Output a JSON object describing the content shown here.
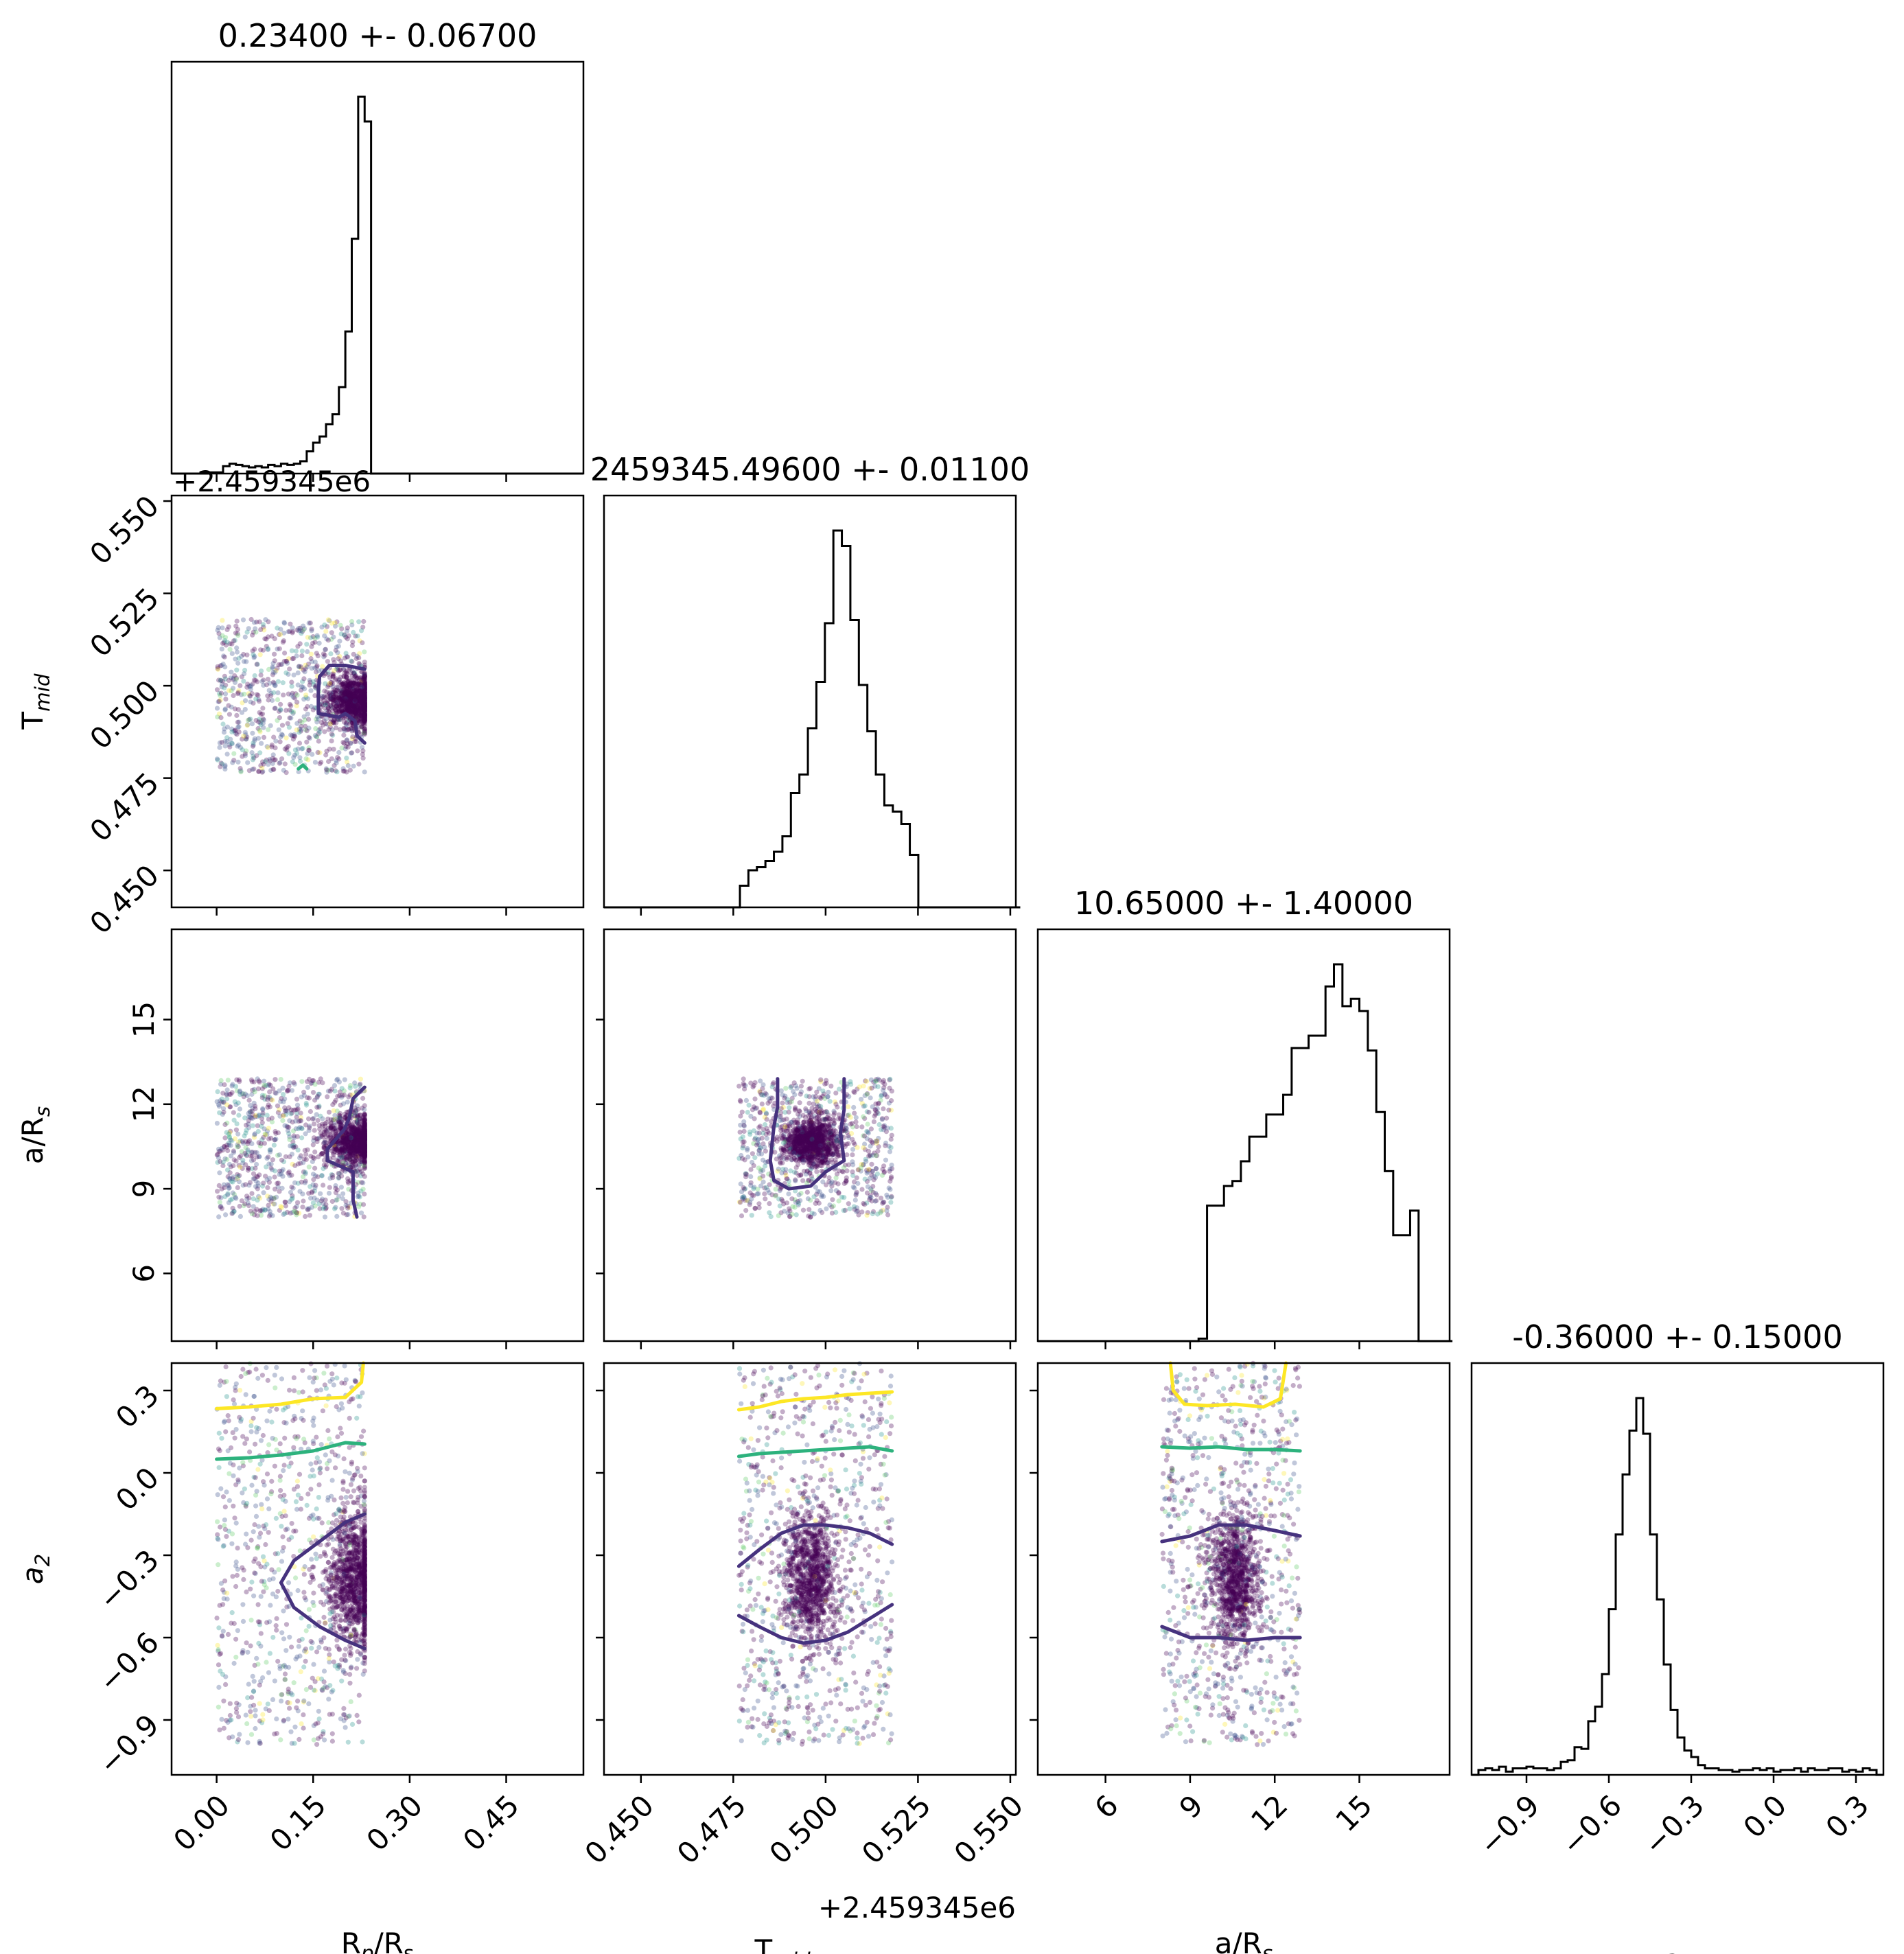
{
  "chart_data": {
    "type": "corner",
    "parameters": [
      {
        "key": "rp",
        "label": "R",
        "label_sub": "p",
        "label_tail": "/R",
        "label_sub2": "s",
        "title": "0.23400 +- 0.06700",
        "range": [
          -0.07,
          0.57
        ],
        "ticks": [
          0.0,
          0.15,
          0.3,
          0.45
        ],
        "tick_labels": [
          "0.00",
          "0.15",
          "0.30",
          "0.45"
        ],
        "offset": ""
      },
      {
        "key": "tmid",
        "label": "T",
        "label_sub": "mid",
        "label_tail": "",
        "label_sub2": "",
        "title": "2459345.49600 +- 0.01100",
        "range": [
          0.44,
          0.5515
        ],
        "ticks": [
          0.45,
          0.475,
          0.5,
          0.525,
          0.55
        ],
        "tick_labels": [
          "0.450",
          "0.475",
          "0.500",
          "0.525",
          "0.550"
        ],
        "offset": "+2.459345e6"
      },
      {
        "key": "ars",
        "label": "a/R",
        "label_sub": "s",
        "label_tail": "",
        "label_sub2": "",
        "title": "10.65000 +- 1.40000",
        "range": [
          3.6,
          18.2
        ],
        "ticks": [
          6,
          9,
          12,
          15
        ],
        "tick_labels": [
          "6",
          "9",
          "12",
          "15"
        ],
        "offset": ""
      },
      {
        "key": "a2",
        "label": "a",
        "label_sub": "2",
        "label_tail": "",
        "label_sub2": "",
        "label_italic": true,
        "title": "-0.36000 +- 0.15000",
        "range": [
          -1.1,
          0.4
        ],
        "ticks": [
          -0.9,
          -0.6,
          -0.3,
          0.0,
          0.3
        ],
        "tick_labels": [
          "−0.9",
          "−0.6",
          "−0.3",
          "0.0",
          "0.3"
        ],
        "offset": ""
      }
    ],
    "histograms": [
      {
        "param": "rp",
        "bin_start": -0.07,
        "bin_width": 0.01,
        "counts": [
          0,
          0,
          0,
          0,
          0,
          0,
          1,
          1,
          6,
          8,
          7,
          6,
          5,
          6,
          5,
          7,
          6,
          8,
          7,
          8,
          10,
          18,
          25,
          30,
          40,
          48,
          70,
          115,
          190,
          305,
          285,
          0,
          0,
          0,
          0,
          0,
          0,
          0,
          0,
          0,
          0,
          0,
          0,
          0,
          0,
          0,
          0,
          0,
          0,
          0,
          0,
          0,
          0,
          0,
          0,
          0,
          0,
          0,
          0,
          0,
          0,
          0,
          0,
          0
        ]
      },
      {
        "param": "tmid",
        "bin_start": 0.44,
        "bin_width": 0.0023,
        "counts": [
          0,
          0,
          0,
          0,
          0,
          0,
          0,
          0,
          0,
          0,
          0,
          0,
          0,
          0,
          0,
          0,
          7,
          12,
          13,
          15,
          18,
          23,
          37,
          43,
          58,
          73,
          92,
          122,
          117,
          93,
          72,
          57,
          43,
          33,
          31,
          27,
          17,
          0,
          0,
          0,
          0,
          0,
          0,
          0,
          0,
          0,
          0,
          0,
          0
        ]
      },
      {
        "param": "ars",
        "bin_start": 3.6,
        "bin_width": 0.3,
        "counts": [
          0,
          0,
          0,
          0,
          0,
          0,
          0,
          0,
          0,
          0,
          0,
          0,
          0,
          0,
          0,
          0,
          0,
          0,
          0,
          1,
          55,
          55,
          63,
          65,
          73,
          83,
          83,
          92,
          92,
          100,
          119,
          119,
          124,
          124,
          144,
          153,
          136,
          139,
          134,
          118,
          93,
          69,
          43,
          43,
          53,
          0,
          0,
          0,
          0
        ]
      },
      {
        "param": "a2",
        "bin_start": -1.1,
        "bin_width": 0.025,
        "counts": [
          0,
          3,
          4,
          3,
          5,
          2,
          4,
          4,
          5,
          4,
          4,
          3,
          4,
          8,
          9,
          17,
          16,
          33,
          42,
          62,
          102,
          148,
          185,
          212,
          232,
          210,
          148,
          108,
          68,
          40,
          23,
          15,
          11,
          6,
          4,
          4,
          3,
          3,
          2,
          3,
          3,
          4,
          3,
          4,
          2,
          3,
          3,
          4,
          2,
          4,
          3,
          3,
          4,
          4,
          2,
          3,
          2,
          4,
          3,
          0
        ]
      }
    ],
    "scatter_panels": [
      {
        "x": "rp",
        "y": "tmid",
        "extent": {
          "x": [
            0.0,
            0.23
          ],
          "y": [
            0.4765,
            0.518
          ]
        },
        "core": {
          "x": 0.215,
          "y": 0.496
        }
      },
      {
        "x": "rp",
        "y": "ars",
        "extent": {
          "x": [
            0.0,
            0.23
          ],
          "y": [
            8.0,
            12.9
          ]
        },
        "core": {
          "x": 0.215,
          "y": 10.7
        }
      },
      {
        "x": "tmid",
        "y": "ars",
        "extent": {
          "x": [
            0.4765,
            0.518
          ],
          "y": [
            8.0,
            12.9
          ]
        },
        "core": {
          "x": 0.496,
          "y": 10.7
        }
      },
      {
        "x": "rp",
        "y": "a2",
        "extent": {
          "x": [
            0.0,
            0.23
          ],
          "y": [
            -0.99,
            0.4
          ]
        },
        "core": {
          "x": 0.215,
          "y": -0.38
        }
      },
      {
        "x": "tmid",
        "y": "a2",
        "extent": {
          "x": [
            0.4765,
            0.518
          ],
          "y": [
            -0.99,
            0.4
          ]
        },
        "core": {
          "x": 0.496,
          "y": -0.38
        }
      },
      {
        "x": "ars",
        "y": "a2",
        "extent": {
          "x": [
            8.0,
            12.9
          ],
          "y": [
            -0.99,
            0.4
          ]
        },
        "core": {
          "x": 10.6,
          "y": -0.38
        }
      }
    ],
    "contours": [
      {
        "panel": "rp-tmid",
        "color": "#46327e",
        "points": [
          [
            0.23,
            0.4845
          ],
          [
            0.218,
            0.4865
          ],
          [
            0.215,
            0.4905
          ],
          [
            0.2,
            0.4925
          ],
          [
            0.19,
            0.4915
          ],
          [
            0.158,
            0.4925
          ],
          [
            0.158,
            0.4985
          ],
          [
            0.16,
            0.5025
          ],
          [
            0.175,
            0.5055
          ],
          [
            0.2,
            0.5055
          ],
          [
            0.23,
            0.5045
          ]
        ]
      },
      {
        "panel": "rp-tmid",
        "color": "#2db27d",
        "points": [
          [
            0.127,
            0.4775
          ],
          [
            0.134,
            0.4785
          ],
          [
            0.14,
            0.4775
          ]
        ]
      },
      {
        "panel": "rp-ars",
        "color": "#46327e",
        "points": [
          [
            0.23,
            12.6
          ],
          [
            0.212,
            12.2
          ],
          [
            0.206,
            11.5
          ],
          [
            0.198,
            11.1
          ],
          [
            0.172,
            10.4
          ],
          [
            0.172,
            10.0
          ],
          [
            0.192,
            9.8
          ],
          [
            0.212,
            9.6
          ],
          [
            0.212,
            8.6
          ],
          [
            0.218,
            8.0
          ]
        ]
      },
      {
        "panel": "tmid-ars",
        "color": "#46327e",
        "points": [
          [
            0.487,
            12.9
          ],
          [
            0.487,
            11.9
          ],
          [
            0.486,
            11.2
          ],
          [
            0.485,
            10.0
          ],
          [
            0.486,
            9.3
          ],
          [
            0.49,
            9.0
          ],
          [
            0.496,
            9.1
          ],
          [
            0.5,
            9.6
          ],
          [
            0.505,
            10.0
          ],
          [
            0.504,
            11.0
          ],
          [
            0.505,
            11.8
          ],
          [
            0.505,
            12.9
          ]
        ]
      },
      {
        "panel": "rp-a2",
        "color": "#fde725",
        "points": [
          [
            0.0,
            0.234
          ],
          [
            0.05,
            0.24
          ],
          [
            0.1,
            0.25
          ],
          [
            0.15,
            0.27
          ],
          [
            0.2,
            0.275
          ],
          [
            0.225,
            0.33
          ],
          [
            0.228,
            0.4
          ]
        ]
      },
      {
        "panel": "rp-a2",
        "color": "#2db27d",
        "points": [
          [
            0.0,
            0.05
          ],
          [
            0.05,
            0.055
          ],
          [
            0.1,
            0.065
          ],
          [
            0.15,
            0.08
          ],
          [
            0.2,
            0.11
          ],
          [
            0.23,
            0.105
          ]
        ]
      },
      {
        "panel": "rp-a2",
        "color": "#46327e",
        "points": [
          [
            0.23,
            -0.15
          ],
          [
            0.2,
            -0.18
          ],
          [
            0.16,
            -0.25
          ],
          [
            0.12,
            -0.32
          ],
          [
            0.1,
            -0.4
          ],
          [
            0.12,
            -0.49
          ],
          [
            0.16,
            -0.56
          ],
          [
            0.2,
            -0.61
          ],
          [
            0.23,
            -0.64
          ]
        ]
      },
      {
        "panel": "tmid-a2",
        "color": "#fde725",
        "points": [
          [
            0.4765,
            0.23
          ],
          [
            0.482,
            0.24
          ],
          [
            0.488,
            0.26
          ],
          [
            0.494,
            0.27
          ],
          [
            0.5,
            0.275
          ],
          [
            0.506,
            0.285
          ],
          [
            0.512,
            0.29
          ],
          [
            0.518,
            0.295
          ]
        ]
      },
      {
        "panel": "tmid-a2",
        "color": "#2db27d",
        "points": [
          [
            0.4765,
            0.06
          ],
          [
            0.482,
            0.07
          ],
          [
            0.488,
            0.075
          ],
          [
            0.494,
            0.08
          ],
          [
            0.5,
            0.085
          ],
          [
            0.506,
            0.09
          ],
          [
            0.512,
            0.095
          ],
          [
            0.518,
            0.08
          ]
        ]
      },
      {
        "panel": "tmid-a2",
        "color": "#46327e",
        "points": [
          [
            0.4765,
            -0.34
          ],
          [
            0.482,
            -0.28
          ],
          [
            0.488,
            -0.22
          ],
          [
            0.494,
            -0.19
          ],
          [
            0.5,
            -0.19
          ],
          [
            0.506,
            -0.2
          ],
          [
            0.512,
            -0.22
          ],
          [
            0.518,
            -0.26
          ]
        ]
      },
      {
        "panel": "tmid-a2",
        "color": "#46327e",
        "points": [
          [
            0.4765,
            -0.52
          ],
          [
            0.482,
            -0.56
          ],
          [
            0.488,
            -0.6
          ],
          [
            0.494,
            -0.62
          ],
          [
            0.5,
            -0.61
          ],
          [
            0.506,
            -0.58
          ],
          [
            0.512,
            -0.53
          ],
          [
            0.518,
            -0.48
          ]
        ]
      },
      {
        "panel": "ars-a2",
        "color": "#fde725",
        "points": [
          [
            8.3,
            0.4
          ],
          [
            8.4,
            0.3
          ],
          [
            8.8,
            0.25
          ],
          [
            9.6,
            0.245
          ],
          [
            10.6,
            0.25
          ],
          [
            11.6,
            0.24
          ],
          [
            12.2,
            0.27
          ],
          [
            12.4,
            0.4
          ]
        ]
      },
      {
        "panel": "ars-a2",
        "color": "#2db27d",
        "points": [
          [
            8.0,
            0.095
          ],
          [
            9.0,
            0.09
          ],
          [
            10.0,
            0.095
          ],
          [
            11.0,
            0.085
          ],
          [
            12.0,
            0.085
          ],
          [
            12.9,
            0.08
          ]
        ]
      },
      {
        "panel": "ars-a2",
        "color": "#46327e",
        "points": [
          [
            8.0,
            -0.25
          ],
          [
            9.0,
            -0.23
          ],
          [
            10.0,
            -0.19
          ],
          [
            11.0,
            -0.19
          ],
          [
            12.0,
            -0.21
          ],
          [
            12.9,
            -0.23
          ]
        ]
      },
      {
        "panel": "ars-a2",
        "color": "#46327e",
        "points": [
          [
            8.0,
            -0.56
          ],
          [
            9.0,
            -0.6
          ],
          [
            10.0,
            -0.6
          ],
          [
            11.0,
            -0.61
          ],
          [
            12.0,
            -0.6
          ],
          [
            12.9,
            -0.6
          ]
        ]
      }
    ],
    "colormap": [
      "#440154",
      "#3b528b",
      "#21918c",
      "#5ec962",
      "#fde725"
    ],
    "grid": false
  }
}
